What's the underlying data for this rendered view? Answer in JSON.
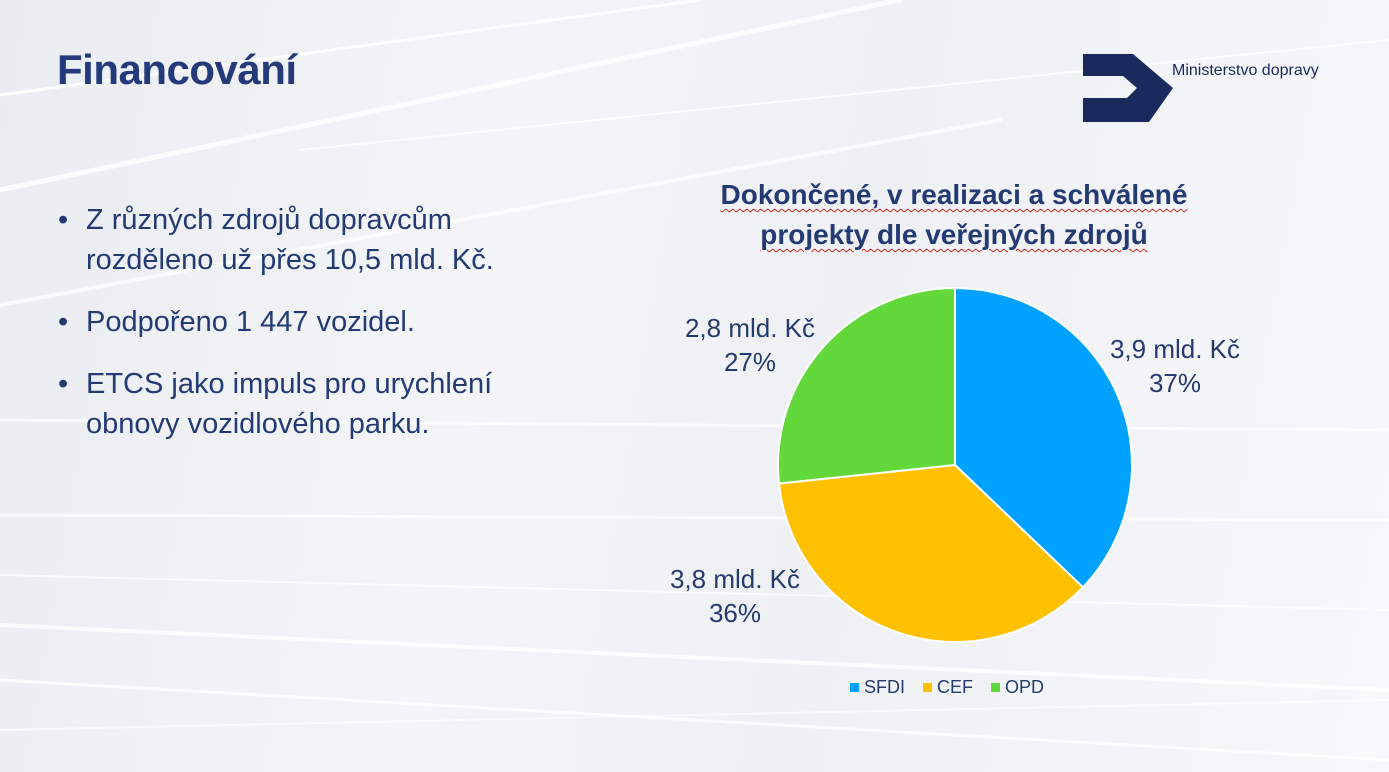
{
  "slide": {
    "title": "Financování",
    "logo_text": "Ministerstvo dopravy",
    "bullets": [
      {
        "line1": "Z různých zdrojů dopravcům",
        "line2": "rozděleno už přes 10,5 mld. Kč."
      },
      {
        "line1": "Podpořeno 1 447 vozidel.",
        "line2": ""
      },
      {
        "line1": "ETCS jako impuls pro urychlení",
        "line2": "obnovy vozidlového parku."
      }
    ],
    "bullet_char": "•"
  },
  "chart_data": {
    "type": "pie",
    "title_line1": "Dokončené, v realizaci a schválené",
    "title_line2": "projekty dle veřejných zdrojů",
    "series": [
      {
        "name": "SFDI",
        "value_label": "3,9 mld. Kč",
        "percent_label": "37%",
        "value": 3.9,
        "percent": 37,
        "color": "#00a2ff"
      },
      {
        "name": "CEF",
        "value_label": "3,8 mld. Kč",
        "percent_label": "36%",
        "value": 3.8,
        "percent": 36,
        "color": "#ffc000"
      },
      {
        "name": "OPD",
        "value_label": "2,8 mld. Kč",
        "percent_label": "27%",
        "value": 2.8,
        "percent": 27,
        "color": "#62d83a"
      }
    ],
    "legend_position": "bottom"
  },
  "colors": {
    "title": "#253a7a",
    "text": "#233a73",
    "logo": "#1b2a5c"
  }
}
